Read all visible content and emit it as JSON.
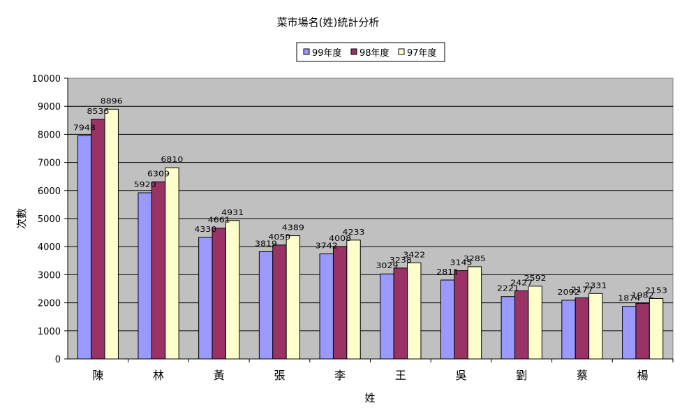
{
  "chart_data": {
    "type": "bar",
    "title": "菜市場名(姓)統計分析",
    "xlabel": "姓",
    "ylabel": "次數",
    "categories": [
      "陳",
      "林",
      "黃",
      "張",
      "李",
      "王",
      "吳",
      "劉",
      "蔡",
      "楊"
    ],
    "series": [
      {
        "name": "99年度",
        "color": "#9999ff",
        "values": [
          7948,
          5920,
          4330,
          3819,
          3742,
          3029,
          2811,
          2221,
          2092,
          1874
        ]
      },
      {
        "name": "98年度",
        "color": "#993366",
        "values": [
          8536,
          6309,
          4661,
          4059,
          4008,
          3238,
          3145,
          2427,
          2177,
          1982
        ]
      },
      {
        "name": "97年度",
        "color": "#ffffcc",
        "values": [
          8896,
          6810,
          4931,
          4389,
          4233,
          3422,
          3285,
          2592,
          2331,
          2153
        ]
      }
    ],
    "ylim": [
      0,
      10000
    ],
    "yticks": [
      0,
      1000,
      2000,
      3000,
      4000,
      5000,
      6000,
      7000,
      8000,
      9000,
      10000
    ],
    "grid": true,
    "legend": "top-center",
    "plot_background": "#c0c0c0"
  }
}
